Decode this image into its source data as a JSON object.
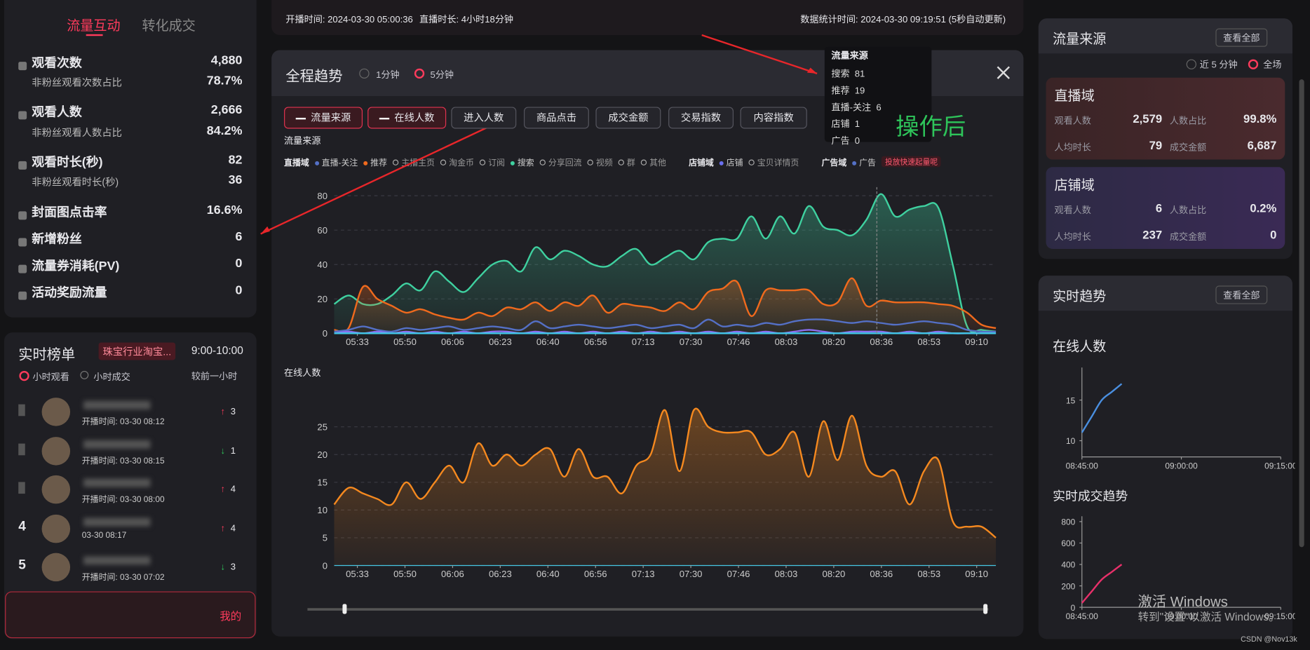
{
  "top_bar": {
    "start": "开播时间: 2024-03-30 05:00:36",
    "duration": "直播时长: 4小时18分钟",
    "stat_time": "数据统计时间: 2024-03-30 09:19:51 (5秒自动更新)"
  },
  "left_panel": {
    "tabs": [
      "流量互动",
      "转化成交"
    ],
    "metrics": [
      {
        "label": "观看次数",
        "value": "4,880",
        "sub_label": "非粉丝观看次数占比",
        "sub_value": "78.7%"
      },
      {
        "label": "观看人数",
        "value": "2,666",
        "sub_label": "非粉丝观看人数占比",
        "sub_value": "84.2%"
      },
      {
        "label": "观看时长(秒)",
        "value": "82",
        "sub_label": "非粉丝观看时长(秒)",
        "sub_value": "36"
      },
      {
        "label": "封面图点击率",
        "value": "16.6%"
      },
      {
        "label": "新增粉丝",
        "value": "6"
      },
      {
        "label": "流量券消耗(PV)",
        "value": "0"
      },
      {
        "label": "活动奖励流量",
        "value": "0"
      }
    ]
  },
  "ranking": {
    "title": "实时榜单",
    "tag": "珠宝行业淘宝...",
    "time": "9:00-10:00",
    "filters": [
      "小时观看",
      "小时成交"
    ],
    "compare": "较前一小时",
    "mine": "我的",
    "rows": [
      {
        "time": "开播时间: 03-30 08:12",
        "change": "3",
        "direction": "up"
      },
      {
        "time": "开播时间: 03-30 08:15",
        "change": "1",
        "direction": "down"
      },
      {
        "time": "开播时间: 03-30 08:00",
        "change": "4",
        "direction": "up"
      },
      {
        "rank": "4",
        "time": "03-30 08:17",
        "change": "4",
        "direction": "up"
      },
      {
        "rank": "5",
        "time": "开播时间: 03-30 07:02",
        "change": "3",
        "direction": "down"
      }
    ]
  },
  "modal": {
    "title": "全程趋势",
    "intervals": [
      "1分钟",
      "5分钟"
    ],
    "buttons": [
      "流量来源",
      "在线人数",
      "进入人数",
      "商品点击",
      "成交金额",
      "交易指数",
      "内容指数"
    ],
    "annotation": "操作后",
    "legend": [
      {
        "group": "直播域",
        "items": [
          {
            "name": "直播-关注",
            "color": "#5470c6",
            "active": true
          },
          {
            "name": "推荐",
            "color": "#f06a1d",
            "active": true
          },
          {
            "name": "主播主页",
            "active": false
          },
          {
            "name": "淘金币",
            "active": false
          },
          {
            "name": "订阅",
            "active": false
          },
          {
            "name": "搜索",
            "color": "#3fd1a0",
            "active": true
          },
          {
            "name": "分享回流",
            "active": false
          },
          {
            "name": "视频",
            "active": false
          },
          {
            "name": "群",
            "active": false
          },
          {
            "name": "其他",
            "active": false
          }
        ]
      },
      {
        "group": "店铺域",
        "items": [
          {
            "name": "店铺",
            "color": "#6a6ff0",
            "active": true
          },
          {
            "name": "宝贝详情页",
            "active": false
          }
        ]
      },
      {
        "group": "广告域",
        "items": [
          {
            "name": "广告",
            "color": "#5470c6",
            "active": true
          }
        ],
        "badge": "投放快速起量呢"
      }
    ],
    "tooltip": {
      "title": "流量来源",
      "items": [
        {
          "name": "搜索",
          "value": "81"
        },
        {
          "name": "推荐",
          "value": "19"
        },
        {
          "name": "直播-关注",
          "value": "6"
        },
        {
          "name": "店铺",
          "value": "1"
        },
        {
          "name": "广告",
          "value": "0"
        }
      ]
    }
  },
  "chart_data": [
    {
      "type": "line",
      "title": "流量来源",
      "ylim": [
        0,
        85
      ],
      "yticks": [
        0,
        20,
        40,
        60,
        80
      ],
      "grid": true,
      "xticks": [
        "05:33",
        "05:50",
        "06:06",
        "06:23",
        "06:40",
        "06:56",
        "07:13",
        "07:30",
        "07:46",
        "08:03",
        "08:20",
        "08:36",
        "08:53",
        "09:10"
      ],
      "series": [
        {
          "name": "搜索",
          "color": "#3fd1a0",
          "area": true,
          "values": [
            17,
            22,
            17,
            17,
            22,
            29,
            25,
            36,
            30,
            24,
            32,
            40,
            42,
            36,
            50,
            43,
            48,
            45,
            40,
            39,
            45,
            49,
            40,
            44,
            48,
            43,
            53,
            55,
            55,
            68,
            55,
            68,
            58,
            74,
            62,
            60,
            57,
            66,
            81,
            68,
            72,
            74,
            73,
            40,
            4,
            2,
            1
          ]
        },
        {
          "name": "推荐",
          "color": "#f06a1d",
          "area": true,
          "values": [
            2,
            3,
            27,
            20,
            16,
            12,
            14,
            11,
            9,
            8,
            12,
            10,
            15,
            14,
            18,
            13,
            18,
            16,
            22,
            12,
            17,
            16,
            15,
            13,
            18,
            14,
            24,
            26,
            30,
            10,
            25,
            25,
            25,
            25,
            17,
            18,
            32,
            16,
            19,
            18,
            18,
            18,
            17,
            16,
            12,
            5,
            3
          ]
        },
        {
          "name": "直播-关注",
          "color": "#5470c6",
          "area": false,
          "values": [
            1,
            2,
            4,
            2,
            1,
            3,
            2,
            3,
            4,
            2,
            3,
            4,
            3,
            2,
            7,
            3,
            4,
            5,
            4,
            3,
            4,
            5,
            3,
            4,
            5,
            3,
            8,
            4,
            5,
            4,
            6,
            5,
            7,
            8,
            8,
            7,
            6,
            7,
            6,
            5,
            6,
            7,
            6,
            5,
            2,
            1,
            1
          ]
        },
        {
          "name": "店铺",
          "color": "#8b6ff0",
          "area": false,
          "values": [
            0,
            1,
            0,
            1,
            0,
            1,
            0,
            1,
            0,
            1,
            0,
            1,
            1,
            0,
            1,
            0,
            1,
            0,
            1,
            0,
            1,
            0,
            1,
            0,
            1,
            0,
            1,
            0,
            1,
            0,
            1,
            0,
            1,
            2,
            1,
            0,
            1,
            1,
            1,
            0,
            1,
            0,
            1,
            0,
            0,
            0,
            0
          ]
        },
        {
          "name": "广告",
          "color": "#41c8e8",
          "area": false,
          "values": [
            0,
            0,
            0,
            0,
            0,
            0,
            0,
            0,
            0,
            0,
            0,
            0,
            0,
            0,
            0,
            0,
            0,
            0,
            0,
            0,
            0,
            0,
            0,
            0,
            0,
            0,
            0,
            0,
            0,
            0,
            0,
            0,
            0,
            0,
            0,
            0,
            0,
            0,
            0,
            0,
            0,
            0,
            0,
            0,
            0,
            0,
            0
          ]
        }
      ]
    },
    {
      "type": "line",
      "title": "在线人数",
      "ylim": [
        0,
        28
      ],
      "yticks": [
        0,
        5,
        10,
        15,
        20,
        25
      ],
      "grid": true,
      "xticks": [
        "05:33",
        "05:50",
        "06:06",
        "06:23",
        "06:40",
        "06:56",
        "07:13",
        "07:30",
        "07:46",
        "08:03",
        "08:20",
        "08:36",
        "08:53",
        "09:10"
      ],
      "series": [
        {
          "name": "在线人数",
          "color": "#f5891f",
          "area": true,
          "values": [
            11,
            14,
            13,
            12,
            11,
            15,
            12,
            15,
            18,
            15,
            22,
            18,
            20,
            18,
            20,
            21,
            16,
            21,
            16,
            16,
            13,
            18,
            20,
            28,
            17,
            28,
            25,
            24,
            24,
            24,
            20,
            21,
            24,
            16,
            26,
            19,
            27,
            18,
            16,
            17,
            11,
            17,
            19,
            8,
            7,
            7,
            5
          ]
        }
      ]
    },
    {
      "type": "line",
      "title": "在线人数",
      "ylim": [
        8,
        19
      ],
      "yticks": [
        10,
        15
      ],
      "xlim": [
        0,
        30
      ],
      "grid": false,
      "xticks": [
        {
          "value": 0,
          "label": "08:45:00"
        },
        {
          "value": 15,
          "label": "09:00:00"
        },
        {
          "value": 30,
          "label": "09:15:00"
        }
      ],
      "x": [
        0,
        1.5,
        3,
        4.5,
        6
      ],
      "series": [
        {
          "name": "在线人数",
          "color": "#4a8fe0",
          "area": false,
          "values": [
            11,
            13,
            15,
            16,
            17
          ]
        }
      ]
    },
    {
      "type": "line",
      "title": "实时成交趋势",
      "ylim": [
        0,
        850
      ],
      "yticks": [
        0,
        200,
        400,
        600,
        800
      ],
      "xlim": [
        0,
        30
      ],
      "grid": false,
      "xticks": [
        {
          "value": 0,
          "label": "08:45:00"
        },
        {
          "value": 15,
          "label": "09:00:00"
        },
        {
          "value": 30,
          "label": "09:15:00"
        }
      ],
      "x": [
        0,
        1.5,
        3,
        4.5,
        6
      ],
      "series": [
        {
          "name": "实时成交趋势",
          "color": "#e8306a",
          "area": false,
          "values": [
            40,
            150,
            260,
            330,
            400
          ]
        }
      ]
    }
  ],
  "right_panel": {
    "title": "流量来源",
    "view_all": "查看全部",
    "ranges": [
      "近 5 分钟",
      "全场"
    ],
    "cards": [
      {
        "title": "直播域",
        "viewers_label": "观看人数",
        "viewers": "2,579",
        "share_label": "人数占比",
        "share": "99.8%",
        "time_label": "人均时长",
        "time": "79",
        "gmv_label": "成交金额",
        "gmv": "6,687"
      },
      {
        "title": "店铺域",
        "viewers_label": "观看人数",
        "viewers": "6",
        "share_label": "人数占比",
        "share": "0.2%",
        "time_label": "人均时长",
        "time": "237",
        "gmv_label": "成交金额",
        "gmv": "0"
      }
    ],
    "trend_title": "实时趋势",
    "trend_view_all": "查看全部"
  },
  "watermark": {
    "line1": "激活 Windows",
    "line2": "转到\"设置\"以激活 Windows。",
    "credit": "CSDN @Nov13k"
  }
}
